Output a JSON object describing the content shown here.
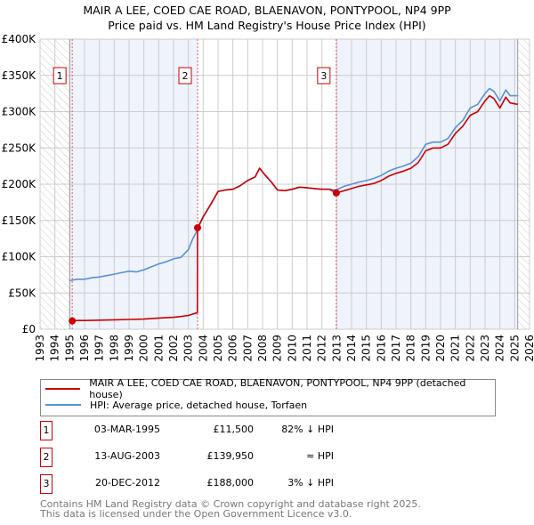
{
  "title": "MAIR A LEE, COED CAE ROAD, BLAENAVON, PONTYPOOL, NP4 9PP",
  "subtitle": "Price paid vs. HM Land Registry's House Price Index (HPI)",
  "legend": {
    "property": "MAIR A LEE, COED CAE ROAD, BLAENAVON, PONTYPOOL, NP4 9PP (detached house)",
    "hpi": "HPI: Average price, detached house, Torfaen"
  },
  "colors": {
    "property": "#cc0000",
    "hpi": "#5b8fd4",
    "shade": "#eef3fc"
  },
  "sales": [
    {
      "num": "1",
      "date": "03-MAR-1995",
      "price": "£11,500",
      "hpi": "82% ↓ HPI",
      "year": 1995.17,
      "value": 11500
    },
    {
      "num": "2",
      "date": "13-AUG-2003",
      "price": "£139,950",
      "hpi": "≈ HPI",
      "year": 2003.62,
      "value": 139950
    },
    {
      "num": "3",
      "date": "20-DEC-2012",
      "price": "£188,000",
      "hpi": "3% ↓ HPI",
      "year": 2012.97,
      "value": 188000
    }
  ],
  "footer": [
    "Contains HM Land Registry data © Crown copyright and database right 2025.",
    "This data is licensed under the Open Government Licence v3.0."
  ],
  "chart_data": {
    "type": "line",
    "xlim": [
      1993,
      2026
    ],
    "ylim": [
      0,
      400000
    ],
    "yticks": [
      0,
      50000,
      100000,
      150000,
      200000,
      250000,
      300000,
      350000,
      400000
    ],
    "ytick_labels": [
      "£0",
      "£50K",
      "£100K",
      "£150K",
      "£200K",
      "£250K",
      "£300K",
      "£350K",
      "£400K"
    ],
    "xticks": [
      1993,
      1994,
      1995,
      1996,
      1997,
      1998,
      1999,
      2000,
      2001,
      2002,
      2003,
      2004,
      2005,
      2006,
      2007,
      2008,
      2009,
      2010,
      2011,
      2012,
      2013,
      2014,
      2015,
      2016,
      2017,
      2018,
      2019,
      2020,
      2021,
      2022,
      2023,
      2024,
      2025,
      2026
    ],
    "data_range": [
      1995.0,
      2025.2
    ],
    "series": [
      {
        "name": "HPI",
        "x": [
          1995.0,
          1995.5,
          1996,
          1996.5,
          1997,
          1997.5,
          1998,
          1998.5,
          1999,
          1999.5,
          2000,
          2000.5,
          2001,
          2001.5,
          2002,
          2002.5,
          2003,
          2003.3,
          2003.62,
          2004,
          2004.5,
          2005,
          2005.5,
          2006,
          2006.5,
          2007,
          2007.5,
          2007.8,
          2008.2,
          2008.6,
          2009,
          2009.5,
          2010,
          2010.5,
          2011,
          2011.5,
          2012,
          2012.5,
          2012.97,
          2013.5,
          2014,
          2014.5,
          2015,
          2015.5,
          2016,
          2016.5,
          2017,
          2017.5,
          2018,
          2018.5,
          2019,
          2019.5,
          2020,
          2020.5,
          2021,
          2021.5,
          2022,
          2022.5,
          2023,
          2023.3,
          2023.6,
          2024,
          2024.4,
          2024.7,
          2025.2
        ],
        "y": [
          67000,
          69000,
          69000,
          71000,
          72000,
          74000,
          76000,
          78000,
          80000,
          79000,
          82000,
          86000,
          90000,
          93000,
          97000,
          99000,
          110000,
          125000,
          137000,
          155000,
          172000,
          190000,
          192000,
          193000,
          198000,
          205000,
          210000,
          222000,
          212000,
          203000,
          192000,
          191000,
          193000,
          196000,
          195000,
          194000,
          193000,
          193000,
          192000,
          197000,
          200000,
          203000,
          205000,
          208000,
          212000,
          218000,
          222000,
          225000,
          229000,
          238000,
          255000,
          258000,
          258000,
          263000,
          278000,
          288000,
          305000,
          310000,
          325000,
          332000,
          328000,
          315000,
          330000,
          322000,
          322000
        ]
      },
      {
        "name": "MAIR A LEE, COED CAE ROAD, BLAENAVON, PONTYPOOL, NP4 9PP (detached house)",
        "x": [
          1995.17,
          1995.5,
          1996,
          1997,
          1998,
          1999,
          2000,
          2001,
          2002,
          2002.5,
          2003,
          2003.3,
          2003.61,
          2003.62,
          2004,
          2004.5,
          2005,
          2005.5,
          2006,
          2006.5,
          2007,
          2007.5,
          2007.8,
          2008.2,
          2008.6,
          2009,
          2009.5,
          2010,
          2010.5,
          2011,
          2011.5,
          2012,
          2012.5,
          2012.97,
          2013.5,
          2014,
          2014.5,
          2015,
          2015.5,
          2016,
          2016.5,
          2017,
          2017.5,
          2018,
          2018.5,
          2019,
          2019.5,
          2020,
          2020.5,
          2021,
          2021.5,
          2022,
          2022.5,
          2023,
          2023.3,
          2023.6,
          2024,
          2024.4,
          2024.7,
          2025.2
        ],
        "y": [
          11500,
          12000,
          12000,
          12500,
          13000,
          13500,
          14000,
          15500,
          16500,
          17500,
          19000,
          21000,
          23000,
          139950,
          155000,
          172000,
          190000,
          192000,
          193000,
          198000,
          205000,
          210000,
          222000,
          212000,
          203000,
          192000,
          191000,
          193000,
          196000,
          195000,
          194000,
          193000,
          193000,
          188000,
          191000,
          194000,
          197000,
          199000,
          201000,
          205000,
          211000,
          215000,
          218000,
          222000,
          230000,
          246000,
          250000,
          250000,
          255000,
          270000,
          280000,
          295000,
          300000,
          315000,
          322000,
          318000,
          305000,
          320000,
          312000,
          310000
        ]
      }
    ]
  }
}
